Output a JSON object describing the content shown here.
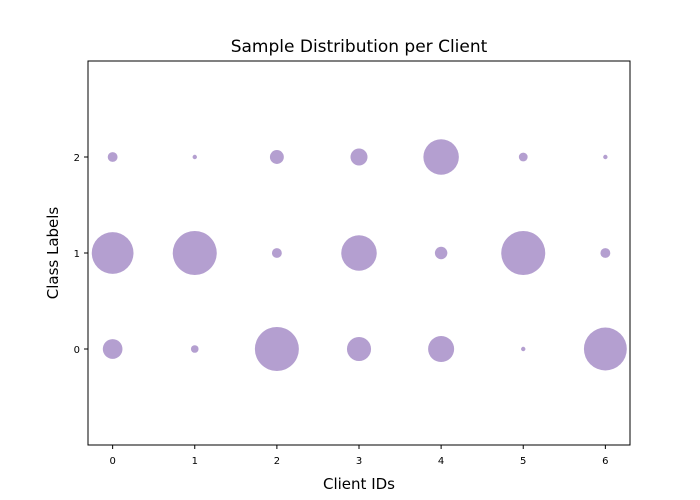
{
  "chart_data": {
    "type": "scatter",
    "title": "Sample Distribution per Client",
    "xlabel": "Client IDs",
    "ylabel": "Class Labels",
    "xlim": [
      -0.3,
      6.3
    ],
    "ylim": [
      -1,
      3
    ],
    "xticks": [
      "0",
      "1",
      "2",
      "3",
      "4",
      "5",
      "6"
    ],
    "yticks": [
      "0",
      "1",
      "2"
    ],
    "grid": false,
    "marker_color": "#9b7fc0",
    "marker_alpha": 0.75,
    "size_note_units": "relative sample count",
    "points": [
      {
        "x": 0,
        "y": 0,
        "size": 20
      },
      {
        "x": 0,
        "y": 1,
        "size": 90
      },
      {
        "x": 0,
        "y": 2,
        "size": 5
      },
      {
        "x": 1,
        "y": 0,
        "size": 3
      },
      {
        "x": 1,
        "y": 1,
        "size": 100
      },
      {
        "x": 1,
        "y": 2,
        "size": 1
      },
      {
        "x": 2,
        "y": 0,
        "size": 100
      },
      {
        "x": 2,
        "y": 1,
        "size": 5
      },
      {
        "x": 2,
        "y": 2,
        "size": 10
      },
      {
        "x": 3,
        "y": 0,
        "size": 30
      },
      {
        "x": 3,
        "y": 1,
        "size": 65
      },
      {
        "x": 3,
        "y": 2,
        "size": 15
      },
      {
        "x": 4,
        "y": 0,
        "size": 35
      },
      {
        "x": 4,
        "y": 1,
        "size": 8
      },
      {
        "x": 4,
        "y": 2,
        "size": 65
      },
      {
        "x": 5,
        "y": 0,
        "size": 1
      },
      {
        "x": 5,
        "y": 1,
        "size": 100
      },
      {
        "x": 5,
        "y": 2,
        "size": 4
      },
      {
        "x": 6,
        "y": 0,
        "size": 95
      },
      {
        "x": 6,
        "y": 1,
        "size": 5
      },
      {
        "x": 6,
        "y": 2,
        "size": 1
      }
    ]
  }
}
